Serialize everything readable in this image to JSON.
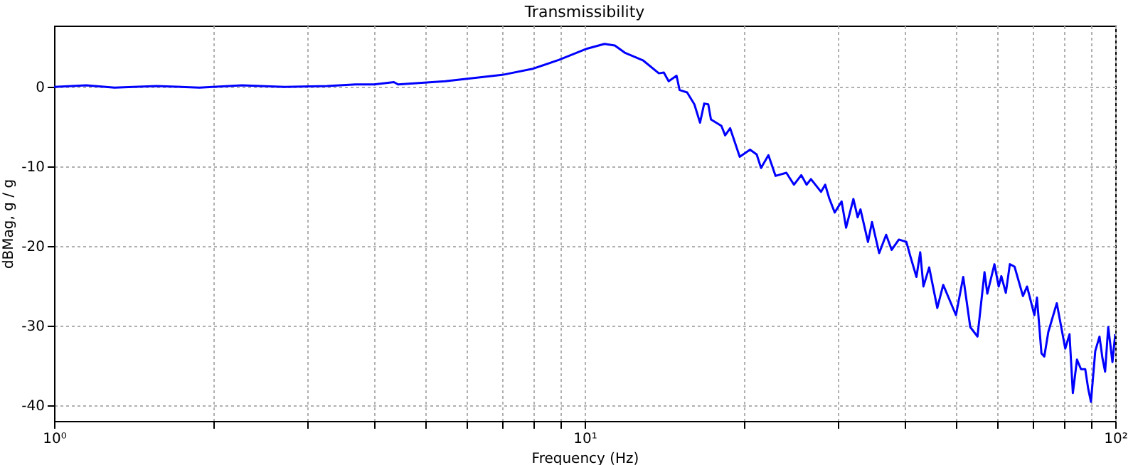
{
  "chart_data": {
    "type": "line",
    "title": "Transmissibility",
    "xlabel": "Frequency (Hz)",
    "ylabel": "dBMag, g / g",
    "log": "x",
    "grid": true,
    "x": [
      1,
      1.15,
      1.3,
      1.56,
      1.88,
      2.26,
      2.72,
      3.27,
      3.7,
      4.01,
      4.37,
      4.45,
      5.46,
      6.99,
      8.01,
      8.95,
      10.1,
      10.9,
      11.4,
      11.9,
      12.9,
      13.8,
      14.1,
      14.4,
      14.9,
      15.1,
      15.6,
      16.1,
      16.5,
      16.8,
      17.1,
      17.3,
      18.1,
      18.4,
      18.8,
      19.6,
      20.5,
      21.1,
      21.5,
      22.2,
      22.9,
      24.0,
      24.8,
      25.6,
      26.2,
      26.7,
      27.9,
      28.4,
      28.9,
      29.6,
      30.5,
      31.1,
      32.1,
      32.7,
      33.1,
      34.2,
      34.8,
      35.9,
      37.0,
      37.9,
      39.1,
      40.4,
      41.1,
      42.2,
      42.9,
      43.5,
      44.6,
      46.2,
      47.4,
      50.1,
      51.7,
      53.3,
      55.0,
      56.7,
      57.4,
      59.2,
      60.3,
      61.0,
      62.2,
      63.3,
      64.6,
      67.0,
      68.2,
      70.4,
      71.2,
      72.6,
      73.5,
      74.8,
      77.6,
      80.5,
      82.0,
      83.2,
      84.7,
      86.2,
      87.8,
      88.9,
      90.0,
      91.7,
      93.4,
      94.6,
      95.7,
      97.0,
      98.8,
      100
    ],
    "series": [
      {
        "color": "#0000ff",
        "values": [
          0,
          0.2,
          -0.1,
          0.1,
          -0.1,
          0.2,
          0,
          0.1,
          0.3,
          0.3,
          0.6,
          0.3,
          0.7,
          1.5,
          2.3,
          3.4,
          4.8,
          5.4,
          5.2,
          4.3,
          3.3,
          1.7,
          1.8,
          0.7,
          1.4,
          -0.4,
          -0.7,
          -2.2,
          -4.5,
          -2.1,
          -2.2,
          -4.1,
          -4.9,
          -6.1,
          -5.2,
          -8.8,
          -7.9,
          -8.5,
          -10.2,
          -8.6,
          -11.2,
          -10.8,
          -12.3,
          -11.1,
          -12.3,
          -11.6,
          -13.2,
          -12.3,
          -14,
          -15.8,
          -14.4,
          -17.7,
          -14.1,
          -16.4,
          -15.4,
          -19.5,
          -17,
          -20.9,
          -18.6,
          -20.5,
          -19.2,
          -19.5,
          -21.3,
          -23.9,
          -20.8,
          -25.1,
          -22.7,
          -27.8,
          -24.9,
          -28.7,
          -23.9,
          -30.2,
          -31.4,
          -23.3,
          -26,
          -22.3,
          -25.1,
          -23.8,
          -25.9,
          -22.3,
          -22.6,
          -26.3,
          -25.1,
          -28.7,
          -26.5,
          -33.5,
          -33.9,
          -30.8,
          -27.2,
          -32.9,
          -31.1,
          -38.5,
          -34.3,
          -35.5,
          -35.5,
          -37.9,
          -39.6,
          -33.2,
          -31.4,
          -34.1,
          -35.8,
          -30.2,
          -34.6,
          -31.1
        ]
      }
    ],
    "xlim": [
      1,
      100
    ],
    "ylim": [
      -42,
      7.7
    ],
    "xticks": [
      {
        "value": 1,
        "label": "10⁰"
      },
      {
        "value": 2,
        "label": null
      },
      {
        "value": 3,
        "label": null
      },
      {
        "value": 4,
        "label": null
      },
      {
        "value": 5,
        "label": null
      },
      {
        "value": 6,
        "label": null
      },
      {
        "value": 7,
        "label": null
      },
      {
        "value": 8,
        "label": null
      },
      {
        "value": 9,
        "label": null
      },
      {
        "value": 10,
        "label": "10¹"
      },
      {
        "value": 20,
        "label": null
      },
      {
        "value": 30,
        "label": null
      },
      {
        "value": 40,
        "label": null
      },
      {
        "value": 50,
        "label": null
      },
      {
        "value": 60,
        "label": null
      },
      {
        "value": 70,
        "label": null
      },
      {
        "value": 80,
        "label": null
      },
      {
        "value": 90,
        "label": null
      },
      {
        "value": 100,
        "label": "10²"
      }
    ],
    "yticks": [
      -40,
      -30,
      -20,
      -10,
      0
    ],
    "marker": "none",
    "line_style": "solid"
  }
}
